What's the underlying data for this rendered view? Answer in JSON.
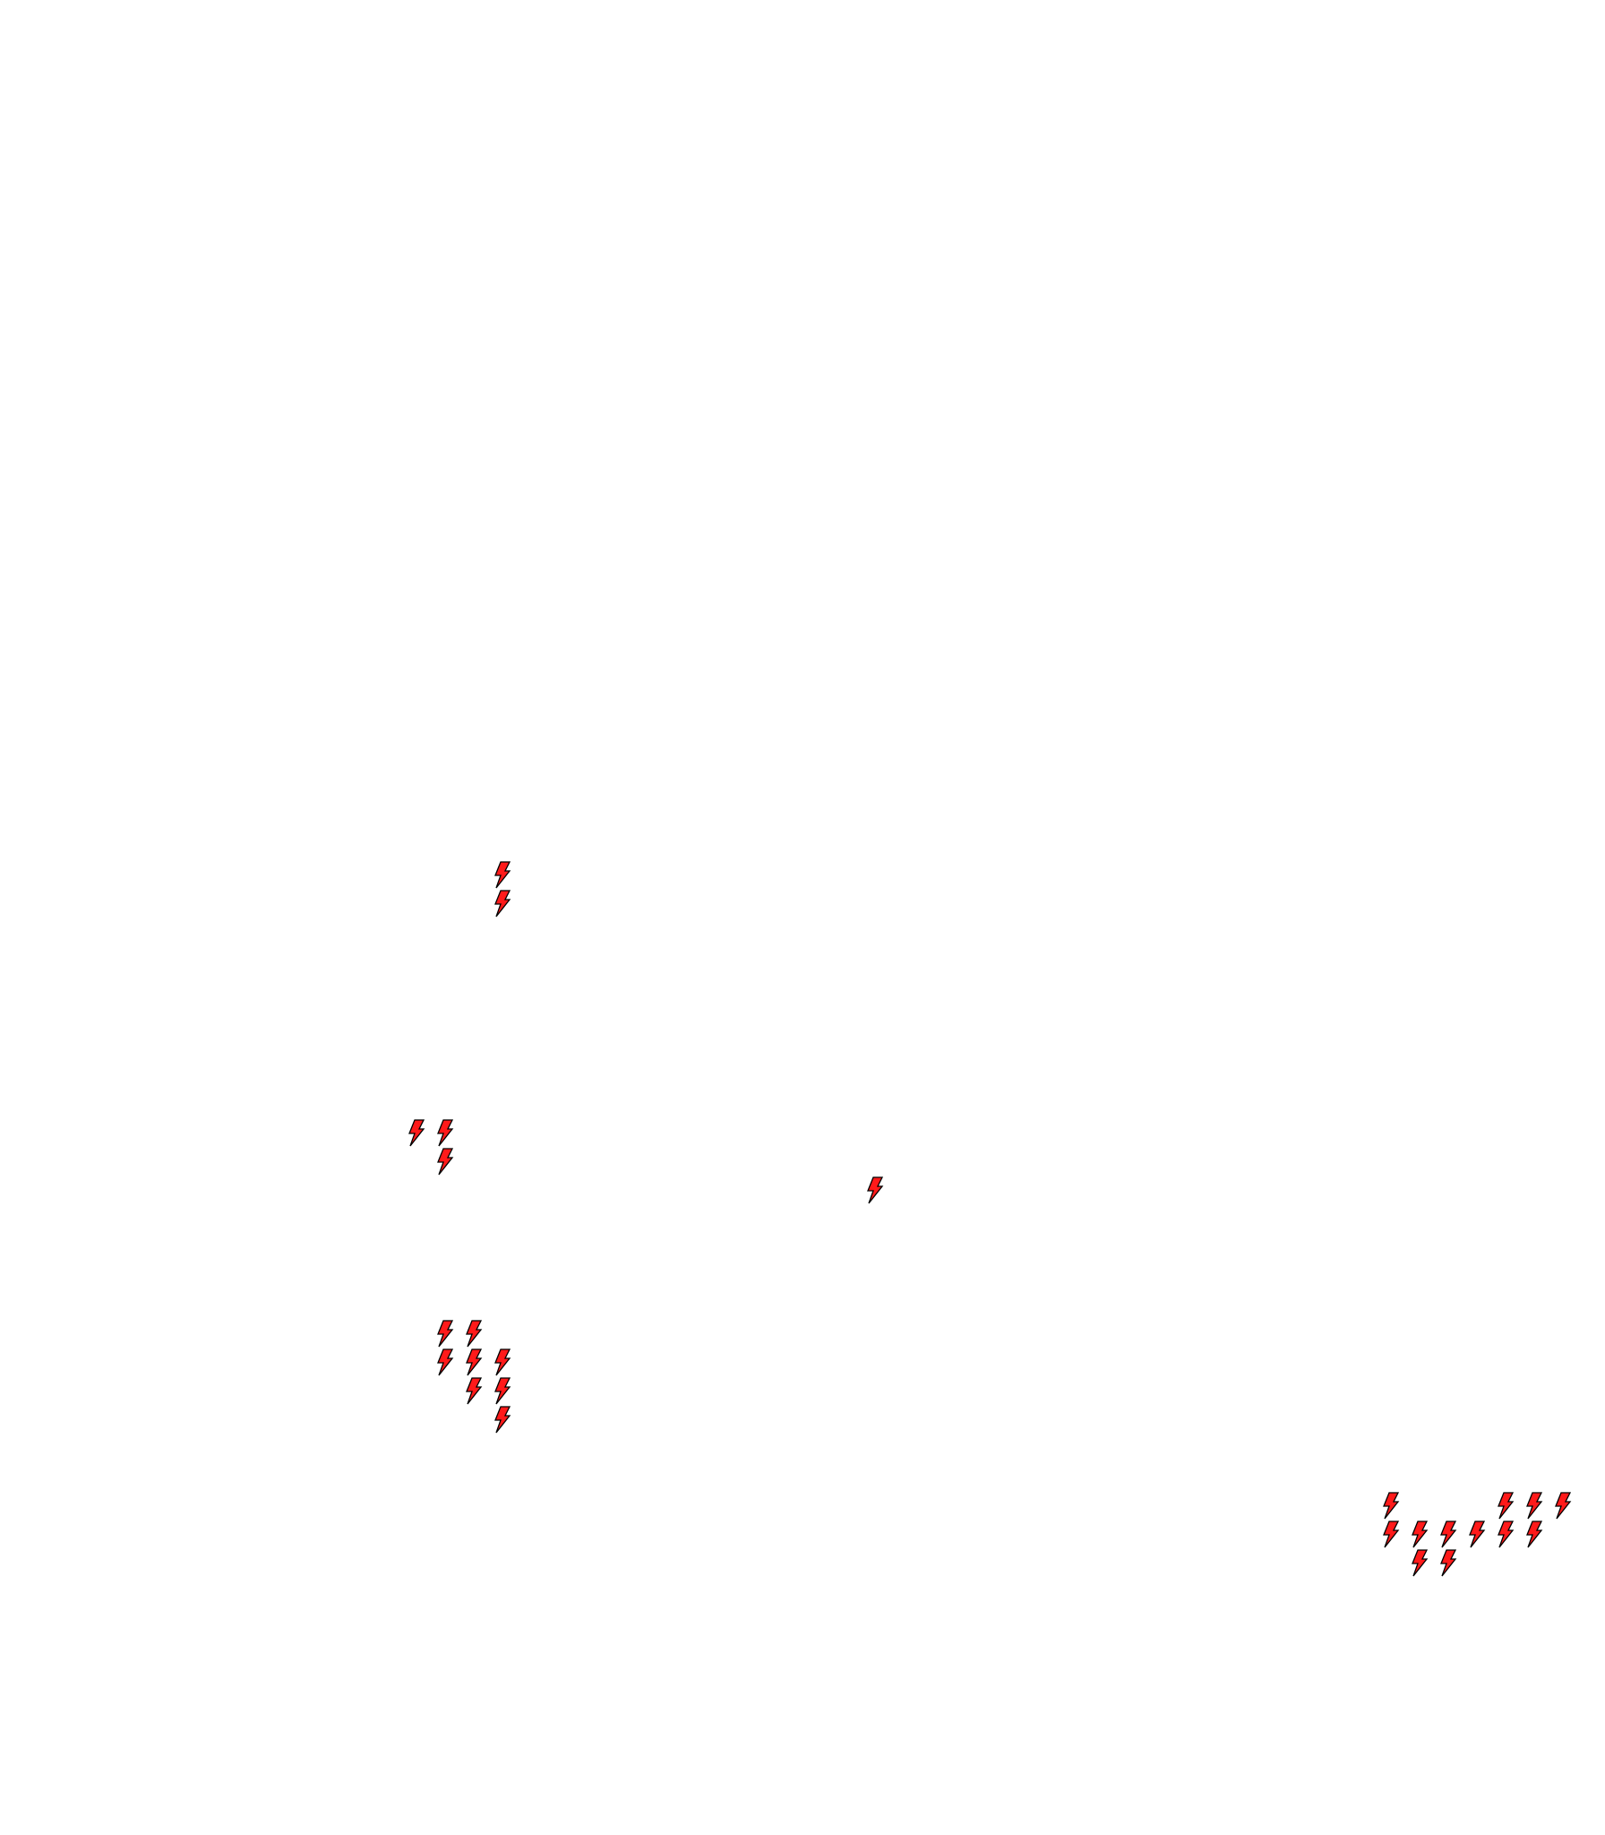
{
  "background_color": "#ffffff",
  "marker": {
    "icon": "lightning-bolt-icon",
    "fill_color": "#ff1a1a",
    "outline_color": "#000000"
  }
}
